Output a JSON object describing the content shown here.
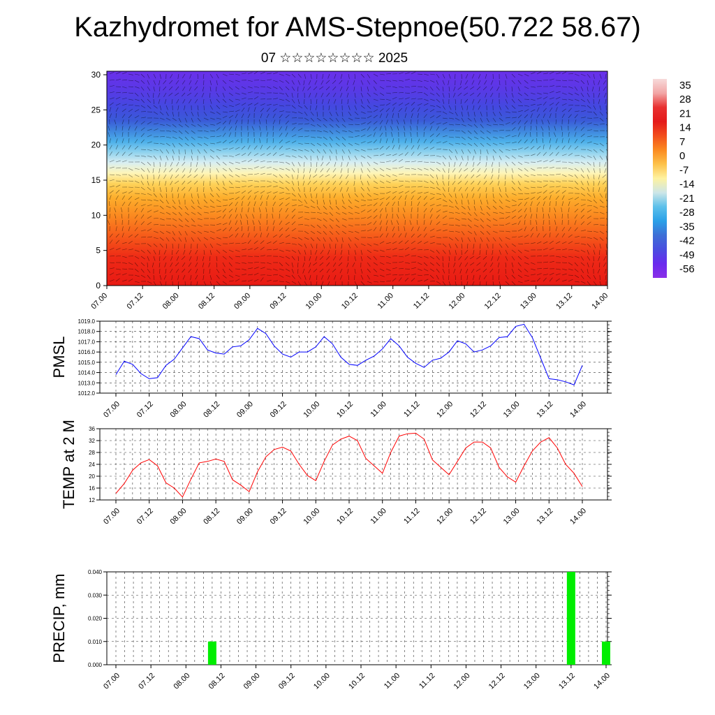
{
  "title": "Kazhydromet for AMS-Stepnoe(50.722 58.67)",
  "subtitle": "07 ☆☆☆☆☆☆☆☆ 2025",
  "colors": {
    "pmsl_line": "#0000ff",
    "temp_line": "#ff0000",
    "precip_bar": "#00ee00",
    "grid": "#000000"
  },
  "time_labels": [
    "07.00",
    "07.12",
    "08.00",
    "08.12",
    "09.00",
    "09.12",
    "10.00",
    "10.12",
    "11.00",
    "11.12",
    "12.00",
    "12.12",
    "13.00",
    "13.12",
    "14.00"
  ],
  "chart_data": [
    {
      "type": "heatmap",
      "title": "",
      "xlabel": "",
      "ylabel": "",
      "x": [
        "07.00",
        "07.12",
        "08.00",
        "08.12",
        "09.00",
        "09.12",
        "10.00",
        "10.12",
        "11.00",
        "11.12",
        "12.00",
        "12.12",
        "13.00",
        "13.12",
        "14.00"
      ],
      "y_ticks": [
        0,
        5,
        10,
        15,
        20,
        25,
        30
      ],
      "ylim": [
        0,
        30.5
      ],
      "colorbar": {
        "labels": [
          "35",
          "28",
          "21",
          "14",
          "7",
          "0",
          "-7",
          "-14",
          "-21",
          "-28",
          "-35",
          "-42",
          "-49",
          "-56"
        ],
        "colors": [
          "#f7dada",
          "#f2a6a6",
          "#e83030",
          "#e41a1a",
          "#f24e1c",
          "#fb8a20",
          "#fdc24a",
          "#fef2a0",
          "#cde6e8",
          "#5cc0ea",
          "#2aa0e8",
          "#3d6fd6",
          "#4a4ee0",
          "#6a2aee",
          "#8a2ee8"
        ]
      },
      "field_rows": [
        {
          "level": 0,
          "color": "#e81a14"
        },
        {
          "level": 4,
          "color": "#ee2a16"
        },
        {
          "level": 7,
          "color": "#f65a1a"
        },
        {
          "level": 10,
          "color": "#fb8a20"
        },
        {
          "level": 12.5,
          "color": "#fdae2c"
        },
        {
          "level": 14.5,
          "color": "#fed35a"
        },
        {
          "level": 16,
          "color": "#fef5b8"
        },
        {
          "level": 17.5,
          "color": "#d8eef2"
        },
        {
          "level": 19,
          "color": "#8ed2ee"
        },
        {
          "level": 20.5,
          "color": "#4cb0ea"
        },
        {
          "level": 22,
          "color": "#3f86de"
        },
        {
          "level": 23.5,
          "color": "#3a5ad8"
        },
        {
          "level": 25.5,
          "color": "#4448e0"
        },
        {
          "level": 28,
          "color": "#5a38e6"
        },
        {
          "level": 30.5,
          "color": "#6a30ea"
        }
      ]
    },
    {
      "type": "line",
      "title": "",
      "ylabel": "PMSL",
      "xlabel": "",
      "ylim": [
        1012.0,
        1019.0
      ],
      "y_ticks": [
        "1012.0",
        "1013.0",
        "1014.0",
        "1015.0",
        "1016.0",
        "1017.0",
        "1018.0",
        "1019.0"
      ],
      "x": [
        "07.00",
        "07.03",
        "07.06",
        "07.09",
        "07.12",
        "07.15",
        "07.18",
        "07.21",
        "08.00",
        "08.03",
        "08.06",
        "08.09",
        "08.12",
        "08.15",
        "08.18",
        "08.21",
        "09.00",
        "09.03",
        "09.06",
        "09.09",
        "09.12",
        "09.15",
        "09.18",
        "09.21",
        "10.00",
        "10.03",
        "10.06",
        "10.09",
        "10.12",
        "10.15",
        "10.18",
        "10.21",
        "11.00",
        "11.03",
        "11.06",
        "11.09",
        "11.12",
        "11.15",
        "11.18",
        "11.21",
        "12.00",
        "12.03",
        "12.06",
        "12.09",
        "12.12",
        "12.15",
        "12.18",
        "12.21",
        "13.00",
        "13.03",
        "13.06",
        "13.09",
        "13.12",
        "13.15",
        "13.18",
        "13.21",
        "14.00"
      ],
      "series": [
        {
          "values": [
            1013.8,
            1015.1,
            1014.8,
            1013.9,
            1013.4,
            1013.5,
            1014.7,
            1015.3,
            1016.4,
            1017.5,
            1017.3,
            1016.2,
            1015.9,
            1015.8,
            1016.5,
            1016.6,
            1017.2,
            1018.3,
            1017.8,
            1016.6,
            1015.8,
            1015.5,
            1016.0,
            1016.0,
            1016.5,
            1017.5,
            1016.8,
            1015.5,
            1014.8,
            1014.7,
            1015.2,
            1015.6,
            1016.3,
            1017.3,
            1016.6,
            1015.5,
            1014.9,
            1014.5,
            1015.2,
            1015.4,
            1016.0,
            1017.1,
            1016.8,
            1016.0,
            1016.2,
            1016.6,
            1017.4,
            1017.5,
            1018.5,
            1018.7,
            1017.4,
            1015.4,
            1013.4,
            1013.3,
            1013.1,
            1012.8,
            1014.7
          ]
        }
      ]
    },
    {
      "type": "line",
      "title": "",
      "ylabel": "TEMP at 2 M",
      "xlabel": "",
      "ylim": [
        12,
        36
      ],
      "y_ticks": [
        "12",
        "16",
        "20",
        "24",
        "28",
        "32",
        "36"
      ],
      "x": [
        "07.00",
        "07.03",
        "07.06",
        "07.09",
        "07.12",
        "07.15",
        "07.18",
        "07.21",
        "08.00",
        "08.03",
        "08.06",
        "08.09",
        "08.12",
        "08.15",
        "08.18",
        "08.21",
        "09.00",
        "09.03",
        "09.06",
        "09.09",
        "09.12",
        "09.15",
        "09.18",
        "09.21",
        "10.00",
        "10.03",
        "10.06",
        "10.09",
        "10.12",
        "10.15",
        "10.18",
        "10.21",
        "11.00",
        "11.03",
        "11.06",
        "11.09",
        "11.12",
        "11.15",
        "11.18",
        "11.21",
        "12.00",
        "12.03",
        "12.06",
        "12.09",
        "12.12",
        "12.15",
        "12.18",
        "12.21",
        "13.00",
        "13.03",
        "13.06",
        "13.09",
        "13.12",
        "13.15",
        "13.18",
        "13.21",
        "14.00"
      ],
      "series": [
        {
          "values": [
            14.2,
            17.5,
            22.0,
            24.5,
            25.6,
            23.5,
            17.8,
            16.0,
            13.0,
            19.0,
            24.5,
            25.0,
            25.8,
            25.0,
            18.8,
            17.0,
            14.8,
            21.5,
            26.5,
            29.0,
            29.8,
            28.5,
            24.0,
            20.2,
            18.5,
            25.0,
            30.5,
            32.5,
            33.5,
            32.0,
            26.0,
            23.5,
            21.0,
            28.0,
            33.5,
            34.3,
            34.5,
            32.5,
            25.5,
            23.0,
            20.5,
            25.0,
            29.5,
            31.5,
            31.5,
            29.5,
            23.0,
            19.8,
            18.0,
            23.5,
            28.5,
            31.5,
            33.0,
            29.5,
            24.0,
            21.0,
            16.5
          ]
        }
      ]
    },
    {
      "type": "bar",
      "title": "",
      "ylabel": "PRECIP, mm",
      "xlabel": "",
      "ylim": [
        0.0,
        0.04
      ],
      "y_ticks": [
        "0.000",
        "0.010",
        "0.020",
        "0.030",
        "0.040"
      ],
      "categories": [
        "08.09",
        "13.12",
        "14.00"
      ],
      "values": [
        0.01,
        0.04,
        0.01
      ]
    }
  ]
}
